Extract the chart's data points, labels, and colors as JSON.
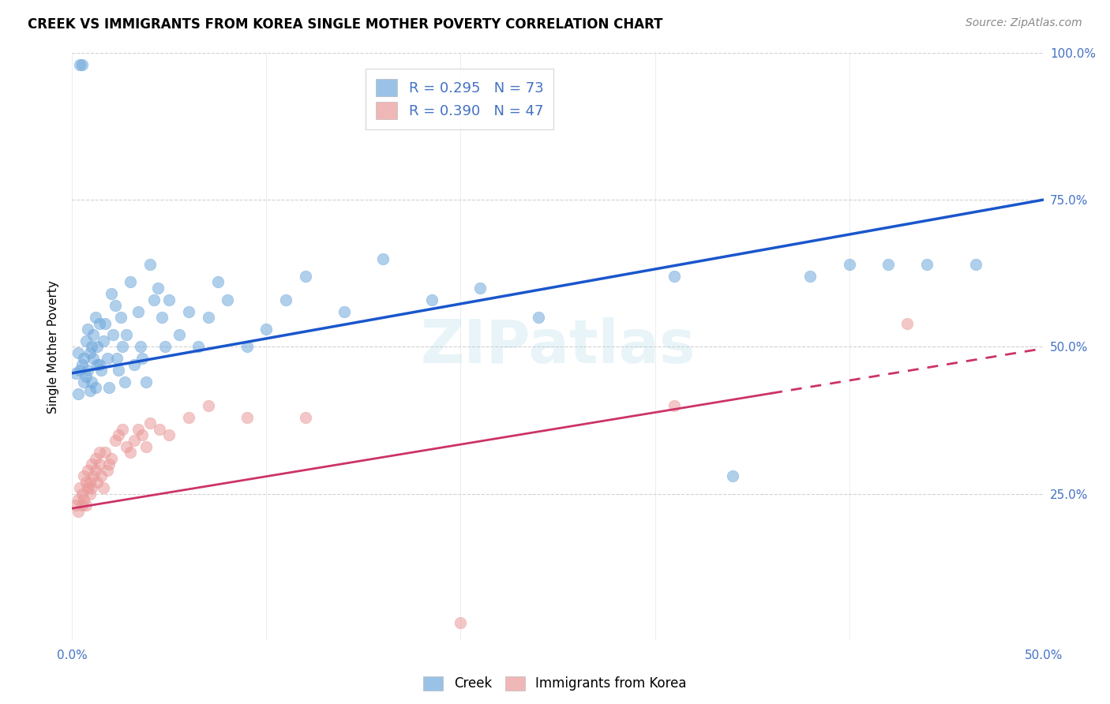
{
  "title": "CREEK VS IMMIGRANTS FROM KOREA SINGLE MOTHER POVERTY CORRELATION CHART",
  "source_text": "Source: ZipAtlas.com",
  "ylabel": "Single Mother Poverty",
  "xlim": [
    0.0,
    0.5
  ],
  "ylim": [
    0.0,
    1.0
  ],
  "xticks": [
    0.0,
    0.1,
    0.2,
    0.3,
    0.4,
    0.5
  ],
  "xticklabels": [
    "0.0%",
    "",
    "",
    "",
    "",
    "50.0%"
  ],
  "xtick_minor": [
    0.05,
    0.1,
    0.15,
    0.2,
    0.25,
    0.3,
    0.35,
    0.4,
    0.45
  ],
  "yticks": [
    0.0,
    0.25,
    0.5,
    0.75,
    1.0
  ],
  "yticklabels_right": [
    "",
    "25.0%",
    "50.0%",
    "75.0%",
    "100.0%"
  ],
  "creek_color": "#6fa8dc",
  "korea_color": "#ea9999",
  "creek_line_color": "#1a56cc",
  "korea_line_color": "#cc3366",
  "watermark": "ZIPatlas",
  "title_fontsize": 12,
  "creek_R": "R = 0.295",
  "creek_N": "N = 73",
  "korea_R": "R = 0.390",
  "korea_N": "N = 47",
  "creek_line_y0": 0.455,
  "creek_line_y1": 0.75,
  "korea_line_solid_x1": 0.36,
  "korea_line_y0": 0.225,
  "korea_line_y1": 0.455,
  "korea_line_dash_y1": 0.497,
  "creek_x": [
    0.002,
    0.003,
    0.003,
    0.004,
    0.004,
    0.005,
    0.005,
    0.006,
    0.006,
    0.007,
    0.007,
    0.008,
    0.008,
    0.009,
    0.009,
    0.01,
    0.01,
    0.011,
    0.011,
    0.012,
    0.012,
    0.013,
    0.013,
    0.014,
    0.014,
    0.015,
    0.016,
    0.017,
    0.018,
    0.019,
    0.02,
    0.021,
    0.022,
    0.023,
    0.024,
    0.025,
    0.026,
    0.027,
    0.028,
    0.03,
    0.032,
    0.034,
    0.035,
    0.036,
    0.038,
    0.04,
    0.042,
    0.044,
    0.046,
    0.048,
    0.05,
    0.055,
    0.06,
    0.065,
    0.07,
    0.075,
    0.08,
    0.09,
    0.1,
    0.11,
    0.12,
    0.14,
    0.16,
    0.185,
    0.21,
    0.24,
    0.31,
    0.34,
    0.38,
    0.4,
    0.42,
    0.44,
    0.465
  ],
  "creek_y": [
    0.455,
    0.49,
    0.42,
    0.46,
    0.98,
    0.47,
    0.98,
    0.48,
    0.44,
    0.45,
    0.51,
    0.53,
    0.46,
    0.49,
    0.425,
    0.5,
    0.44,
    0.52,
    0.48,
    0.55,
    0.43,
    0.47,
    0.5,
    0.54,
    0.47,
    0.46,
    0.51,
    0.54,
    0.48,
    0.43,
    0.59,
    0.52,
    0.57,
    0.48,
    0.46,
    0.55,
    0.5,
    0.44,
    0.52,
    0.61,
    0.47,
    0.56,
    0.5,
    0.48,
    0.44,
    0.64,
    0.58,
    0.6,
    0.55,
    0.5,
    0.58,
    0.52,
    0.56,
    0.5,
    0.55,
    0.61,
    0.58,
    0.5,
    0.53,
    0.58,
    0.62,
    0.56,
    0.65,
    0.58,
    0.6,
    0.55,
    0.62,
    0.28,
    0.62,
    0.64,
    0.64,
    0.64,
    0.64
  ],
  "korea_x": [
    0.002,
    0.003,
    0.003,
    0.004,
    0.005,
    0.005,
    0.006,
    0.006,
    0.007,
    0.007,
    0.008,
    0.008,
    0.009,
    0.009,
    0.01,
    0.01,
    0.011,
    0.012,
    0.012,
    0.013,
    0.014,
    0.014,
    0.015,
    0.016,
    0.017,
    0.018,
    0.019,
    0.02,
    0.022,
    0.024,
    0.026,
    0.028,
    0.03,
    0.032,
    0.034,
    0.036,
    0.038,
    0.04,
    0.045,
    0.05,
    0.06,
    0.07,
    0.09,
    0.12,
    0.2,
    0.31,
    0.43
  ],
  "korea_y": [
    0.23,
    0.24,
    0.22,
    0.26,
    0.23,
    0.25,
    0.24,
    0.28,
    0.27,
    0.23,
    0.26,
    0.29,
    0.27,
    0.25,
    0.26,
    0.3,
    0.28,
    0.29,
    0.31,
    0.27,
    0.3,
    0.32,
    0.28,
    0.26,
    0.32,
    0.29,
    0.3,
    0.31,
    0.34,
    0.35,
    0.36,
    0.33,
    0.32,
    0.34,
    0.36,
    0.35,
    0.33,
    0.37,
    0.36,
    0.35,
    0.38,
    0.4,
    0.38,
    0.38,
    0.03,
    0.4,
    0.54
  ]
}
